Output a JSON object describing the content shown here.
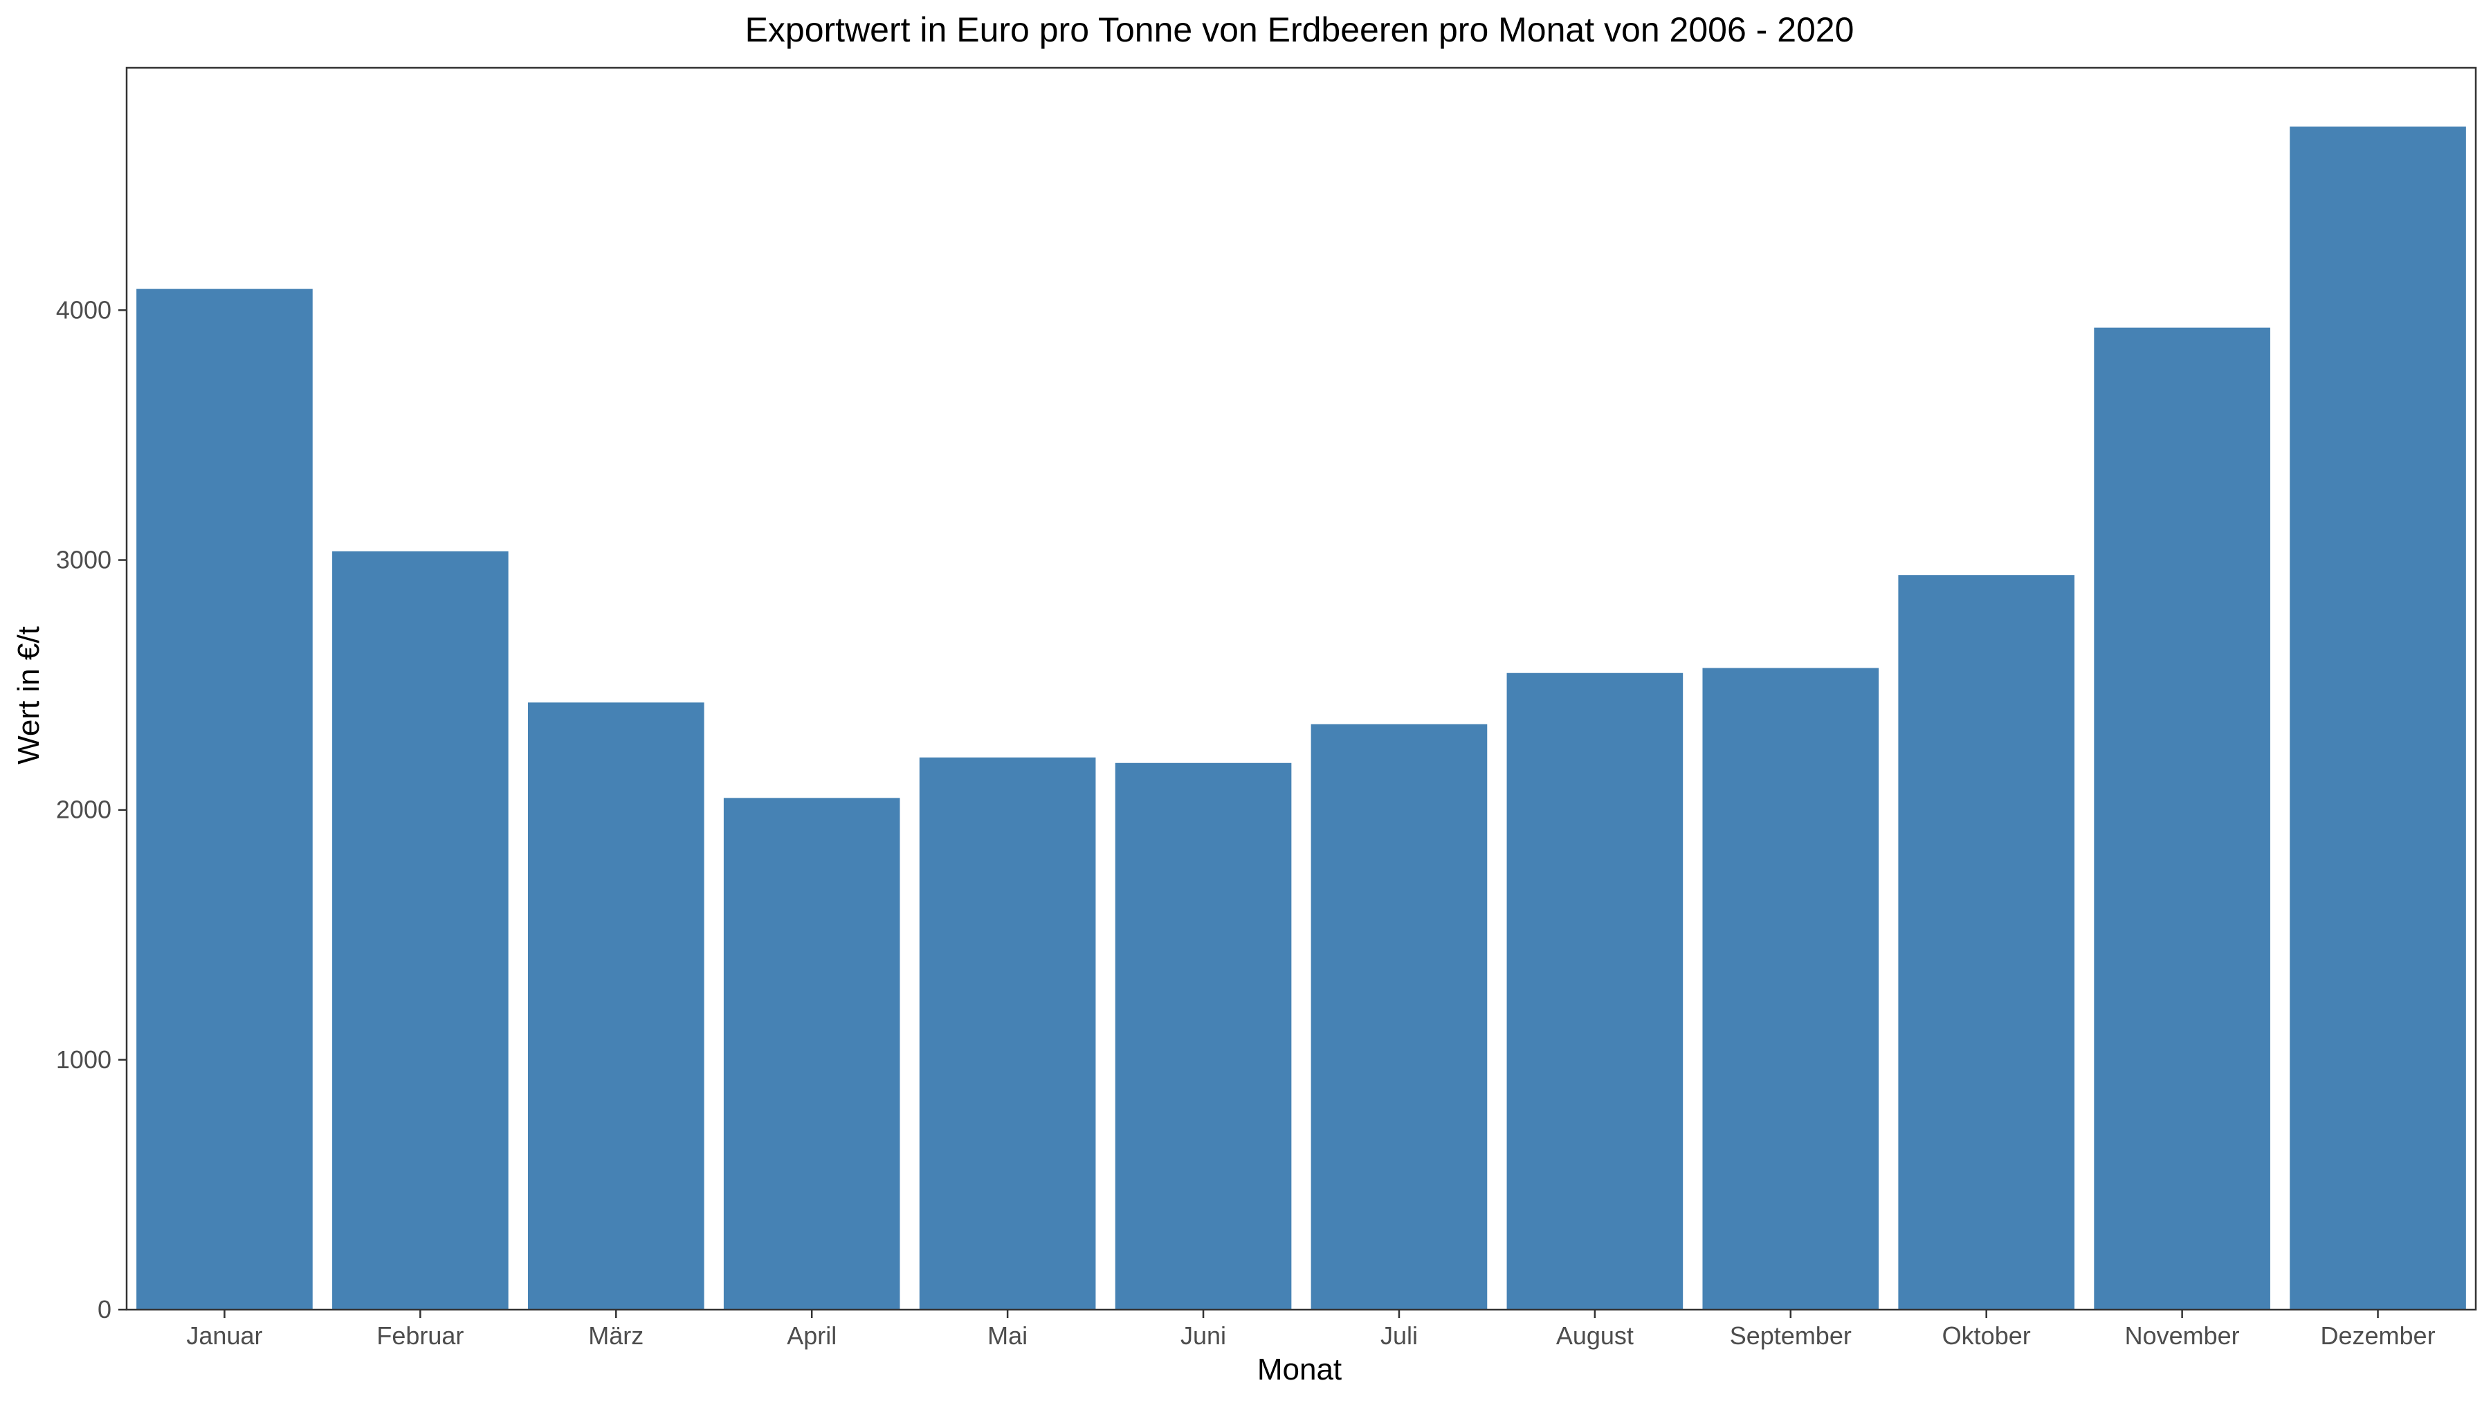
{
  "chart_data": {
    "type": "bar",
    "title": "Exportwert in Euro pro Tonne von Erdbeeren pro Monat von 2006 - 2020",
    "xlabel": "Monat",
    "ylabel": "Wert in €/t",
    "categories": [
      "Januar",
      "Februar",
      "März",
      "April",
      "Mai",
      "Juni",
      "Juli",
      "August",
      "September",
      "Oktober",
      "November",
      "Dezember"
    ],
    "values": [
      4085,
      3035,
      2430,
      2048,
      2210,
      2188,
      2343,
      2548,
      2568,
      2940,
      3930,
      4735
    ],
    "ylim": [
      0,
      4970
    ],
    "yticks": [
      0,
      1000,
      2000,
      3000,
      4000
    ],
    "grid": false,
    "bar_color": "#4682B4"
  }
}
